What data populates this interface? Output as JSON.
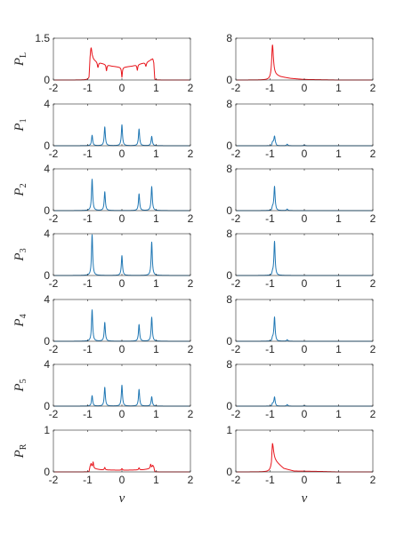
{
  "colors": {
    "edge": "#e8141b",
    "bulk": "#1f77b4",
    "axis": "#262626"
  },
  "x_axis_label": "ν",
  "row_labels": [
    {
      "main": "P",
      "sub": "L"
    },
    {
      "main": "P",
      "sub": "1"
    },
    {
      "main": "P",
      "sub": "2"
    },
    {
      "main": "P",
      "sub": "3"
    },
    {
      "main": "P",
      "sub": "4"
    },
    {
      "main": "P",
      "sub": "5"
    },
    {
      "main": "P",
      "sub": "R"
    }
  ],
  "chart_data": [
    {
      "type": "line",
      "row": 0,
      "col": 0,
      "xlim": [
        -2,
        2
      ],
      "ylim": [
        0,
        1.5
      ],
      "yticks": [
        0,
        1.5
      ],
      "ytick_labels": [
        "0",
        "1.5"
      ],
      "xticks": [
        -2,
        -1,
        0,
        1,
        2
      ],
      "xtick_labels": [
        "-2",
        "-1",
        "0",
        "1",
        "2"
      ],
      "color": "edge",
      "background": [
        {
          "x": -0.96,
          "y": 0
        },
        {
          "x": -0.93,
          "y": 0.55
        },
        {
          "x": -0.85,
          "y": 0.7
        },
        {
          "x": -0.6,
          "y": 0.6
        },
        {
          "x": -0.3,
          "y": 0.5
        },
        {
          "x": 0,
          "y": 0.45
        },
        {
          "x": 0.3,
          "y": 0.5
        },
        {
          "x": 0.6,
          "y": 0.6
        },
        {
          "x": 0.85,
          "y": 0.7
        },
        {
          "x": 0.93,
          "y": 0.55
        },
        {
          "x": 0.96,
          "y": 0
        }
      ],
      "peaks": [
        {
          "x": -0.9,
          "h": 0.55,
          "w": 0.03
        },
        {
          "x": 0.9,
          "h": 0.15,
          "w": 0.03
        },
        {
          "x": -0.7,
          "h": -0.2,
          "w": 0.02
        },
        {
          "x": -0.45,
          "h": -0.22,
          "w": 0.015
        },
        {
          "x": 0,
          "h": -0.35,
          "w": 0.015
        },
        {
          "x": 0.45,
          "h": -0.2,
          "w": 0.015
        },
        {
          "x": 0.7,
          "h": -0.15,
          "w": 0.02
        }
      ]
    },
    {
      "type": "line",
      "row": 0,
      "col": 1,
      "xlim": [
        -2,
        2
      ],
      "ylim": [
        0,
        8
      ],
      "yticks": [
        0,
        8
      ],
      "ytick_labels": [
        "0",
        "8"
      ],
      "xticks": [
        -2,
        -1,
        0,
        1,
        2
      ],
      "xtick_labels": [
        "-2",
        "-1",
        "0",
        "1",
        "2"
      ],
      "color": "edge",
      "background": [
        {
          "x": -0.96,
          "y": 0
        },
        {
          "x": -0.9,
          "y": 1.0
        },
        {
          "x": -0.7,
          "y": 0.6
        },
        {
          "x": -0.4,
          "y": 0.3
        },
        {
          "x": 0,
          "y": 0.1
        },
        {
          "x": 0.5,
          "y": 0.05
        },
        {
          "x": 0.96,
          "y": 0
        }
      ],
      "peaks": [
        {
          "x": -0.93,
          "h": 6.2,
          "w": 0.03
        }
      ]
    },
    {
      "type": "line",
      "row": 1,
      "col": 0,
      "xlim": [
        -2,
        2
      ],
      "ylim": [
        0,
        4
      ],
      "yticks": [
        0,
        4
      ],
      "ytick_labels": [
        "0",
        "4"
      ],
      "xticks": [
        -2,
        -1,
        0,
        1,
        2
      ],
      "xtick_labels": [
        "-2",
        "-1",
        "0",
        "1",
        "2"
      ],
      "color": "bulk",
      "background": [],
      "peaks": [
        {
          "x": -0.87,
          "h": 1.0,
          "w": 0.02
        },
        {
          "x": -0.5,
          "h": 1.8,
          "w": 0.02
        },
        {
          "x": 0,
          "h": 2.0,
          "w": 0.02
        },
        {
          "x": 0.5,
          "h": 1.6,
          "w": 0.02
        },
        {
          "x": 0.87,
          "h": 0.9,
          "w": 0.02
        }
      ]
    },
    {
      "type": "line",
      "row": 1,
      "col": 1,
      "xlim": [
        -2,
        2
      ],
      "ylim": [
        0,
        8
      ],
      "yticks": [
        0,
        8
      ],
      "ytick_labels": [
        "0",
        "8"
      ],
      "xticks": [
        -2,
        -1,
        0,
        1,
        2
      ],
      "xtick_labels": [
        "-2",
        "-1",
        "0",
        "1",
        "2"
      ],
      "color": "bulk",
      "background": [
        {
          "x": -0.96,
          "y": 0
        },
        {
          "x": -0.93,
          "y": 0.7
        },
        {
          "x": -0.85,
          "y": 0.4
        },
        {
          "x": -0.8,
          "y": 0
        }
      ],
      "peaks": [
        {
          "x": -0.87,
          "h": 1.4,
          "w": 0.02
        },
        {
          "x": -0.5,
          "h": 0.3,
          "w": 0.02
        },
        {
          "x": 0,
          "h": 0.15,
          "w": 0.02
        }
      ]
    },
    {
      "type": "line",
      "row": 2,
      "col": 0,
      "xlim": [
        -2,
        2
      ],
      "ylim": [
        0,
        4
      ],
      "yticks": [
        0,
        4
      ],
      "ytick_labels": [
        "0",
        "4"
      ],
      "xticks": [
        -2,
        -1,
        0,
        1,
        2
      ],
      "xtick_labels": [
        "-2",
        "-1",
        "0",
        "1",
        "2"
      ],
      "color": "bulk",
      "background": [],
      "peaks": [
        {
          "x": -0.87,
          "h": 3.0,
          "w": 0.02
        },
        {
          "x": -0.5,
          "h": 1.8,
          "w": 0.02
        },
        {
          "x": 0.5,
          "h": 1.6,
          "w": 0.02
        },
        {
          "x": 0.87,
          "h": 2.3,
          "w": 0.02
        }
      ]
    },
    {
      "type": "line",
      "row": 2,
      "col": 1,
      "xlim": [
        -2,
        2
      ],
      "ylim": [
        0,
        8
      ],
      "yticks": [
        0,
        8
      ],
      "ytick_labels": [
        "0",
        "8"
      ],
      "xticks": [
        -2,
        -1,
        0,
        1,
        2
      ],
      "xtick_labels": [
        "-2",
        "-1",
        "0",
        "1",
        "2"
      ],
      "color": "bulk",
      "background": [
        {
          "x": -0.96,
          "y": 0
        },
        {
          "x": -0.93,
          "y": 0.6
        },
        {
          "x": -0.88,
          "y": 0.3
        },
        {
          "x": -0.8,
          "y": 0
        }
      ],
      "peaks": [
        {
          "x": -0.87,
          "h": 4.4,
          "w": 0.02
        },
        {
          "x": -0.5,
          "h": 0.3,
          "w": 0.02
        }
      ]
    },
    {
      "type": "line",
      "row": 3,
      "col": 0,
      "xlim": [
        -2,
        2
      ],
      "ylim": [
        0,
        4
      ],
      "yticks": [
        0,
        4
      ],
      "ytick_labels": [
        "0",
        "4"
      ],
      "xticks": [
        -2,
        -1,
        0,
        1,
        2
      ],
      "xtick_labels": [
        "-2",
        "-1",
        "0",
        "1",
        "2"
      ],
      "color": "bulk",
      "background": [],
      "peaks": [
        {
          "x": -0.87,
          "h": 3.9,
          "w": 0.02
        },
        {
          "x": 0,
          "h": 1.9,
          "w": 0.02
        },
        {
          "x": 0.87,
          "h": 3.2,
          "w": 0.02
        }
      ]
    },
    {
      "type": "line",
      "row": 3,
      "col": 1,
      "xlim": [
        -2,
        2
      ],
      "ylim": [
        0,
        8
      ],
      "yticks": [
        0,
        8
      ],
      "ytick_labels": [
        "0",
        "8"
      ],
      "xticks": [
        -2,
        -1,
        0,
        1,
        2
      ],
      "xtick_labels": [
        "-2",
        "-1",
        "0",
        "1",
        "2"
      ],
      "color": "bulk",
      "background": [
        {
          "x": -0.96,
          "y": 0
        },
        {
          "x": -0.93,
          "y": 0.5
        },
        {
          "x": -0.88,
          "y": 0.3
        },
        {
          "x": -0.8,
          "y": 0
        }
      ],
      "peaks": [
        {
          "x": -0.87,
          "h": 6.3,
          "w": 0.02
        }
      ]
    },
    {
      "type": "line",
      "row": 4,
      "col": 0,
      "xlim": [
        -2,
        2
      ],
      "ylim": [
        0,
        4
      ],
      "yticks": [
        0,
        4
      ],
      "ytick_labels": [
        "0",
        "4"
      ],
      "xticks": [
        -2,
        -1,
        0,
        1,
        2
      ],
      "xtick_labels": [
        "-2",
        "-1",
        "0",
        "1",
        "2"
      ],
      "color": "bulk",
      "background": [],
      "peaks": [
        {
          "x": -0.87,
          "h": 3.0,
          "w": 0.02
        },
        {
          "x": -0.5,
          "h": 1.8,
          "w": 0.02
        },
        {
          "x": 0.5,
          "h": 1.6,
          "w": 0.02
        },
        {
          "x": 0.87,
          "h": 2.3,
          "w": 0.02
        }
      ]
    },
    {
      "type": "line",
      "row": 4,
      "col": 1,
      "xlim": [
        -2,
        2
      ],
      "ylim": [
        0,
        8
      ],
      "yticks": [
        0,
        8
      ],
      "ytick_labels": [
        "0",
        "8"
      ],
      "xticks": [
        -2,
        -1,
        0,
        1,
        2
      ],
      "xtick_labels": [
        "-2",
        "-1",
        "0",
        "1",
        "2"
      ],
      "color": "bulk",
      "background": [
        {
          "x": -0.96,
          "y": 0
        },
        {
          "x": -0.93,
          "y": 0.6
        },
        {
          "x": -0.88,
          "y": 0.3
        },
        {
          "x": -0.8,
          "y": 0
        }
      ],
      "peaks": [
        {
          "x": -0.87,
          "h": 4.4,
          "w": 0.02
        },
        {
          "x": -0.5,
          "h": 0.3,
          "w": 0.02
        }
      ]
    },
    {
      "type": "line",
      "row": 5,
      "col": 0,
      "xlim": [
        -2,
        2
      ],
      "ylim": [
        0,
        4
      ],
      "yticks": [
        0,
        4
      ],
      "ytick_labels": [
        "0",
        "4"
      ],
      "xticks": [
        -2,
        -1,
        0,
        1,
        2
      ],
      "xtick_labels": [
        "-2",
        "-1",
        "0",
        "1",
        "2"
      ],
      "color": "bulk",
      "background": [],
      "peaks": [
        {
          "x": -0.87,
          "h": 1.0,
          "w": 0.02
        },
        {
          "x": -0.5,
          "h": 1.8,
          "w": 0.02
        },
        {
          "x": 0,
          "h": 2.0,
          "w": 0.02
        },
        {
          "x": 0.5,
          "h": 1.6,
          "w": 0.02
        },
        {
          "x": 0.87,
          "h": 0.9,
          "w": 0.02
        }
      ]
    },
    {
      "type": "line",
      "row": 5,
      "col": 1,
      "xlim": [
        -2,
        2
      ],
      "ylim": [
        0,
        8
      ],
      "yticks": [
        0,
        8
      ],
      "ytick_labels": [
        "0",
        "8"
      ],
      "xticks": [
        -2,
        -1,
        0,
        1,
        2
      ],
      "xtick_labels": [
        "-2",
        "-1",
        "0",
        "1",
        "2"
      ],
      "color": "bulk",
      "background": [
        {
          "x": -0.96,
          "y": 0
        },
        {
          "x": -0.93,
          "y": 0.5
        },
        {
          "x": -0.88,
          "y": 0.2
        },
        {
          "x": -0.8,
          "y": 0
        }
      ],
      "peaks": [
        {
          "x": -0.87,
          "h": 1.6,
          "w": 0.02
        },
        {
          "x": -0.5,
          "h": 0.3,
          "w": 0.02
        },
        {
          "x": 0,
          "h": 0.1,
          "w": 0.02
        }
      ]
    },
    {
      "type": "line",
      "row": 6,
      "col": 0,
      "xlim": [
        -2,
        2
      ],
      "ylim": [
        0,
        1
      ],
      "yticks": [
        0,
        1
      ],
      "ytick_labels": [
        "0",
        "1"
      ],
      "xticks": [
        -2,
        -1,
        0,
        1,
        2
      ],
      "xtick_labels": [
        "-2",
        "-1",
        "0",
        "1",
        "2"
      ],
      "color": "edge",
      "background": [
        {
          "x": -0.96,
          "y": 0
        },
        {
          "x": -0.93,
          "y": 0.1
        },
        {
          "x": -0.85,
          "y": 0.08
        },
        {
          "x": -0.6,
          "y": 0.05
        },
        {
          "x": 0,
          "y": 0.04
        },
        {
          "x": 0.6,
          "y": 0.05
        },
        {
          "x": 0.85,
          "y": 0.08
        },
        {
          "x": 0.93,
          "y": 0.1
        },
        {
          "x": 0.96,
          "y": 0
        }
      ],
      "peaks": [
        {
          "x": -0.9,
          "h": 0.1,
          "w": 0.02
        },
        {
          "x": -0.84,
          "h": 0.15,
          "w": 0.015
        },
        {
          "x": -0.5,
          "h": 0.06,
          "w": 0.015
        },
        {
          "x": 0,
          "h": 0.04,
          "w": 0.015
        },
        {
          "x": 0.5,
          "h": 0.05,
          "w": 0.015
        },
        {
          "x": 0.84,
          "h": 0.1,
          "w": 0.015
        },
        {
          "x": 0.9,
          "h": 0.06,
          "w": 0.02
        }
      ]
    },
    {
      "type": "line",
      "row": 6,
      "col": 1,
      "xlim": [
        -2,
        2
      ],
      "ylim": [
        0,
        1
      ],
      "yticks": [
        0,
        1
      ],
      "ytick_labels": [
        "0",
        "1"
      ],
      "xticks": [
        -2,
        -1,
        0,
        1,
        2
      ],
      "xtick_labels": [
        "-2",
        "-1",
        "0",
        "1",
        "2"
      ],
      "color": "edge",
      "background": [
        {
          "x": -0.96,
          "y": 0
        },
        {
          "x": -0.93,
          "y": 0.3
        },
        {
          "x": -0.85,
          "y": 0.25
        },
        {
          "x": -0.6,
          "y": 0.08
        },
        {
          "x": -0.3,
          "y": 0.02
        },
        {
          "x": 0.5,
          "y": 0.01
        },
        {
          "x": 0.96,
          "y": 0
        }
      ],
      "peaks": [
        {
          "x": -0.93,
          "h": 0.38,
          "w": 0.04
        }
      ]
    }
  ]
}
